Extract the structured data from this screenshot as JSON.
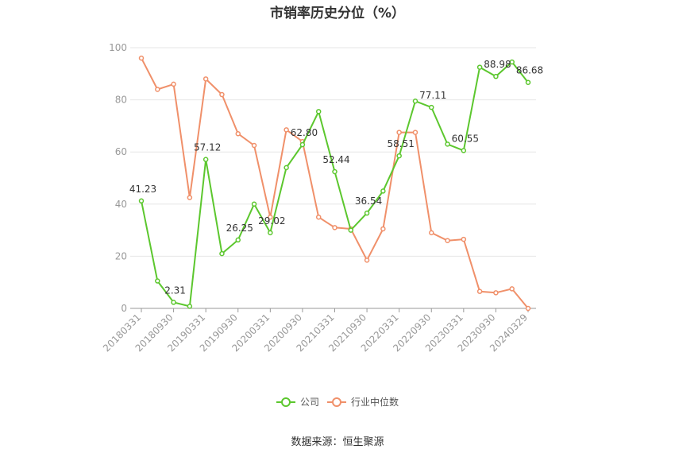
{
  "chart_data": {
    "type": "line",
    "title": "市销率历史分位（%）",
    "source": "数据来源：恒生聚源",
    "ylim": [
      0,
      100
    ],
    "yticks": [
      0,
      20,
      40,
      60,
      80,
      100
    ],
    "grid": true,
    "legend_position": "bottom",
    "x_tick_labels": [
      "20180331",
      "20180930",
      "20190331",
      "20190930",
      "20200331",
      "20200930",
      "20210331",
      "20210930",
      "20220331",
      "20220930",
      "20230331",
      "20230930",
      "20240329"
    ],
    "x": [
      "20180331",
      "20180630",
      "20180930",
      "20181231",
      "20190331",
      "20190630",
      "20190930",
      "20191231",
      "20200331",
      "20200630",
      "20200930",
      "20201231",
      "20210331",
      "20210630",
      "20210930",
      "20211231",
      "20220331",
      "20220630",
      "20220930",
      "20221231",
      "20230331",
      "20230630",
      "20230930",
      "20231231",
      "20240329"
    ],
    "series": [
      {
        "name": "公司",
        "color": "#5cc72e",
        "values": [
          41.23,
          10.5,
          2.31,
          0.8,
          57.12,
          21.0,
          26.25,
          40.0,
          29.02,
          54.0,
          62.8,
          75.5,
          52.44,
          30.0,
          36.54,
          45.0,
          58.51,
          79.5,
          77.11,
          63.0,
          60.55,
          92.5,
          88.98,
          94.5,
          86.68
        ],
        "labels": [
          "41.23",
          "",
          "2.31",
          "",
          "57.12",
          "",
          "26.25",
          "",
          "29.02",
          "",
          "62.80",
          "",
          "52.44",
          "",
          "36.54",
          "",
          "58.51",
          "",
          "77.11",
          "",
          "60.55",
          "",
          "88.98",
          "",
          "86.68"
        ]
      },
      {
        "name": "行业中位数",
        "color": "#f0906a",
        "values": [
          96.0,
          84.0,
          86.0,
          42.5,
          88.0,
          82.0,
          67.0,
          62.5,
          35.0,
          68.5,
          64.0,
          35.0,
          31.0,
          30.5,
          18.5,
          30.5,
          67.5,
          67.5,
          29.0,
          26.0,
          26.5,
          6.5,
          6.0,
          7.5,
          0.0
        ],
        "labels": []
      }
    ]
  }
}
